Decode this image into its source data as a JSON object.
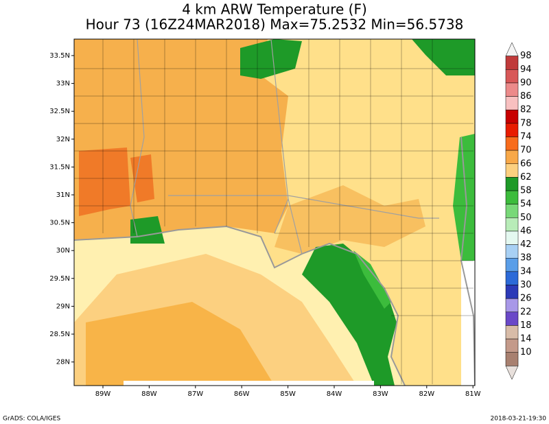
{
  "title": [
    "4 km ARW Temperature (F)",
    "Hour 73 (16Z24MAR2018) Max=75.2532 Min=56.5738"
  ],
  "latitudes": [
    "33.5N",
    "33N",
    "32.5N",
    "32N",
    "31.5N",
    "31N",
    "30.5N",
    "30N",
    "29.5N",
    "29N",
    "28.5N",
    "28N"
  ],
  "longitudes": [
    "89W",
    "88W",
    "87W",
    "86W",
    "85W",
    "84W",
    "83W",
    "82W",
    "81W"
  ],
  "colorbar": {
    "labels": [
      "98",
      "94",
      "90",
      "86",
      "82",
      "78",
      "74",
      "70",
      "66",
      "62",
      "58",
      "54",
      "50",
      "46",
      "42",
      "38",
      "34",
      "30",
      "26",
      "22",
      "18",
      "14",
      "10"
    ],
    "colors": [
      "#f4f4f4",
      "#c03a3a",
      "#d85858",
      "#ec8a8a",
      "#f8c0c0",
      "#c80000",
      "#e81c00",
      "#f86c1c",
      "#f8a848",
      "#fcd080",
      "#1e9a28",
      "#3cbc3c",
      "#78d878",
      "#b8ecb8",
      "#e4f8f0",
      "#a8d0f4",
      "#5a9ee8",
      "#2c6ad8",
      "#2c3ab8",
      "#a898e8",
      "#6a48c8",
      "#d8bca8",
      "#c49a8a",
      "#a88070",
      "#e8e0dc"
    ]
  },
  "footer": {
    "left": "GrADS: COLA/IGES",
    "right": "2018-03-21-19:30"
  }
}
